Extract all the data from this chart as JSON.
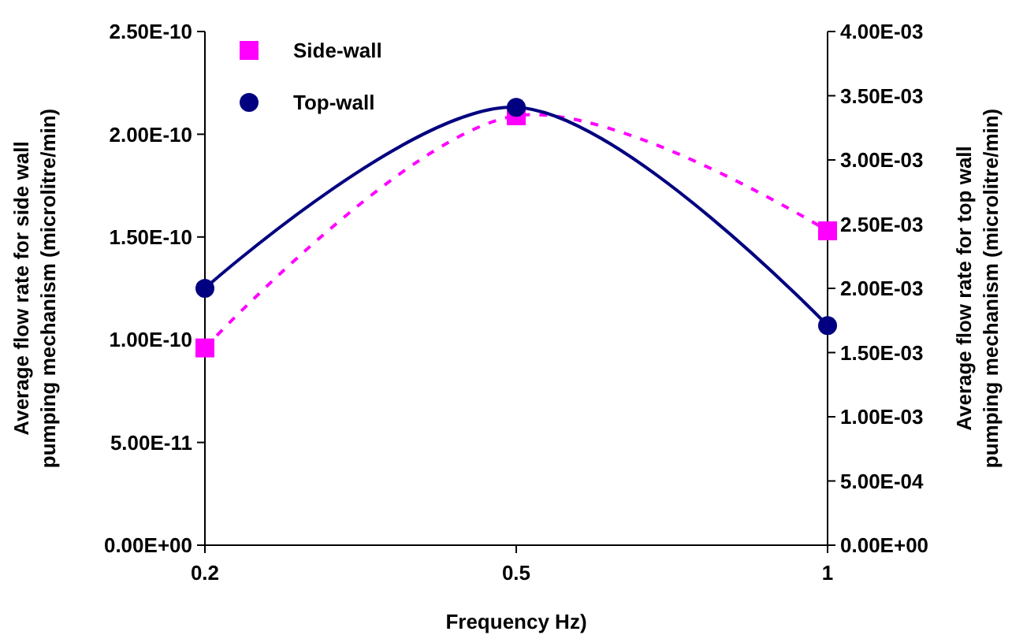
{
  "chart_data": {
    "type": "line",
    "xlabel": "Frequency Hz)",
    "ylabel": "Average flow rate for side wall\npumping mechanism (microlitre/min)",
    "y2label": "Average flow rate for top wall\npumping mechanism (microlitre/min)",
    "categories": [
      "0.2",
      "0.5",
      "1"
    ],
    "series": [
      {
        "name": "Side-wall",
        "color": "#ff00ff",
        "values": [
          9.6e-11,
          2.09e-10,
          1.53e-10
        ],
        "marker": "square",
        "line_style": "dashed"
      },
      {
        "name": "Top-wall",
        "color": "#000080",
        "values": [
          0.002,
          0.00341,
          0.00171
        ],
        "marker": "circle",
        "line_style": "solid",
        "axis": "y2"
      }
    ],
    "ylim": [
      0,
      2.5e-10
    ],
    "yticks": [
      {
        "value": 0,
        "label": "0.00E+00"
      },
      {
        "value": 5e-11,
        "label": "5.00E-11"
      },
      {
        "value": 1e-10,
        "label": "1.00E-10"
      },
      {
        "value": 1.5e-10,
        "label": "1.50E-10"
      },
      {
        "value": 2e-10,
        "label": "2.00E-10"
      },
      {
        "value": 2.5e-10,
        "label": "2.50E-10"
      }
    ],
    "y2lim": [
      0,
      0.004
    ],
    "y2ticks": [
      {
        "value": 0,
        "label": "0.00E+00"
      },
      {
        "value": 0.0005,
        "label": "5.00E-04"
      },
      {
        "value": 0.001,
        "label": "1.00E-03"
      },
      {
        "value": 0.0015,
        "label": "1.50E-03"
      },
      {
        "value": 0.002,
        "label": "2.00E-03"
      },
      {
        "value": 0.0025,
        "label": "2.50E-03"
      },
      {
        "value": 0.003,
        "label": "3.00E-03"
      },
      {
        "value": 0.0035,
        "label": "3.50E-03"
      },
      {
        "value": 0.004,
        "label": "4.00E-03"
      }
    ],
    "grid": false,
    "legend": "top left"
  }
}
